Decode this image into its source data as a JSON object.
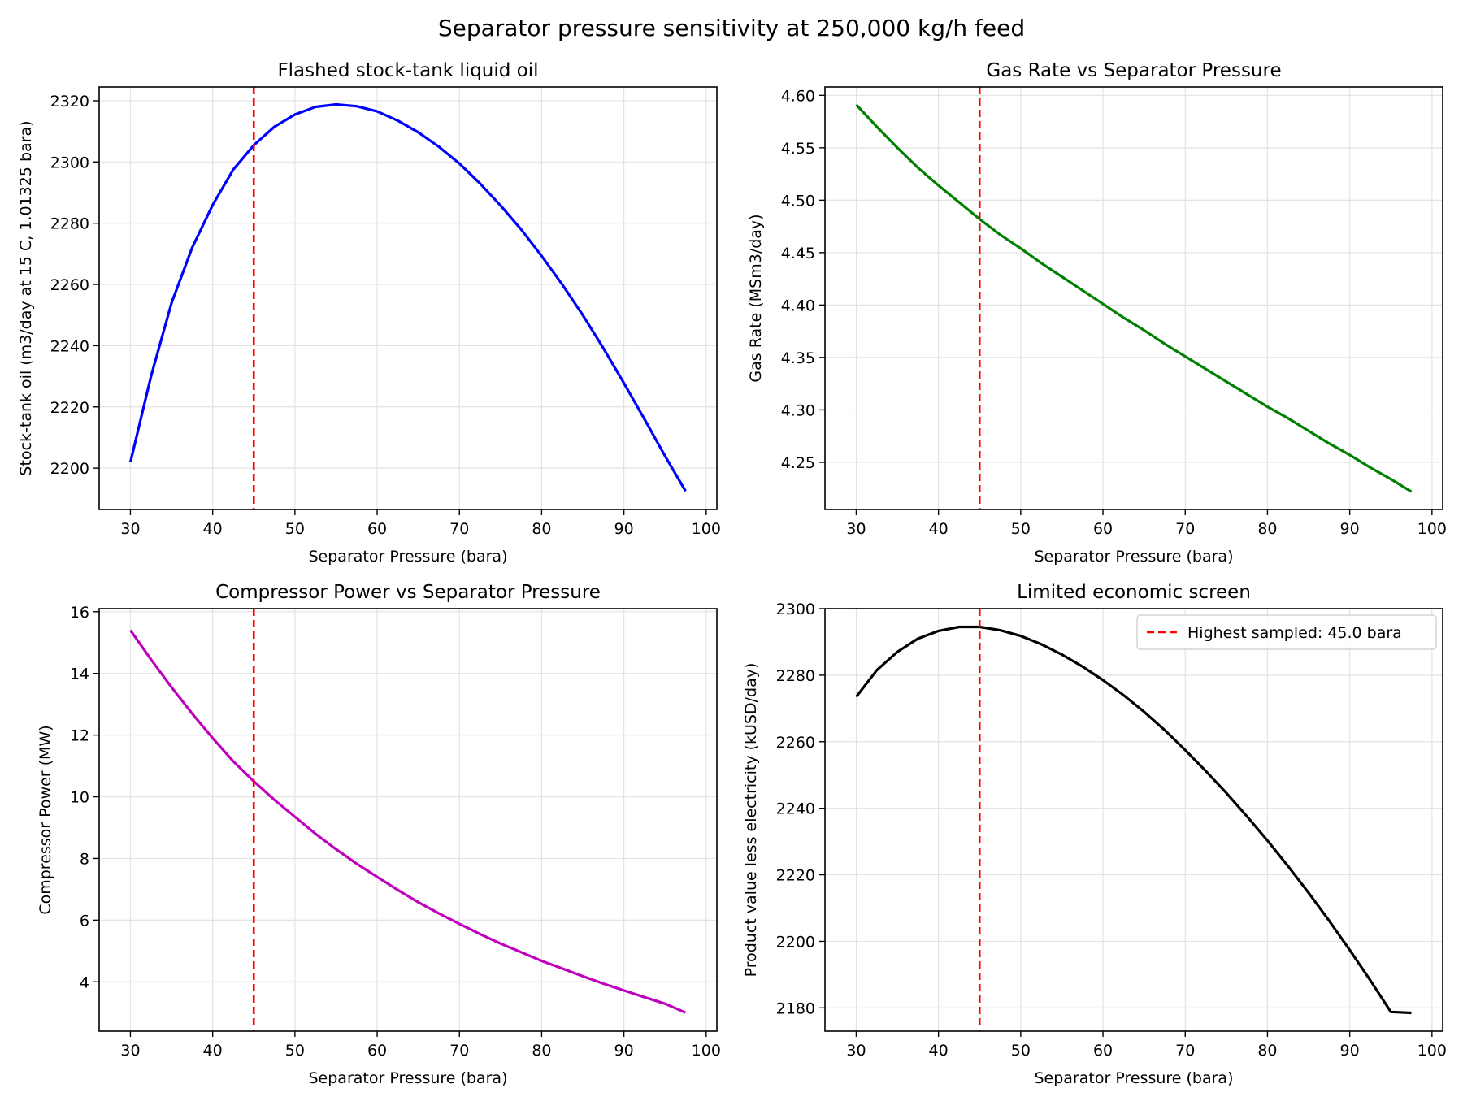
{
  "figure": {
    "title": "Separator pressure sensitivity at 250,000 kg/h feed"
  },
  "chart_data": [
    {
      "type": "line",
      "title": "Flashed stock-tank liquid oil",
      "xlabel": "Separator Pressure (bara)",
      "ylabel": "Stock-tank oil (m3/day at 15 C, 1.01325 bara)",
      "xlim": [
        26.2,
        101.3
      ],
      "ylim": [
        2186.5,
        2324.5
      ],
      "xticks": [
        30,
        40,
        50,
        60,
        70,
        80,
        90,
        100
      ],
      "yticks": [
        2200,
        2220,
        2240,
        2260,
        2280,
        2300,
        2320
      ],
      "grid": true,
      "color": "#0000ff",
      "marker_line": {
        "x": 45.0,
        "color": "#ff0000"
      },
      "series": [
        {
          "x": [
            30,
            32.5,
            35,
            37.5,
            40,
            42.5,
            45,
            47.5,
            50,
            52.5,
            55,
            57.5,
            60,
            62.5,
            65,
            67.5,
            70,
            72.5,
            75,
            77.5,
            80,
            82.5,
            85,
            87.5,
            90,
            92.5,
            95,
            97.5
          ],
          "values": [
            2202,
            2230,
            2254,
            2272,
            2286,
            2297.5,
            2305.5,
            2311.5,
            2315.5,
            2318,
            2318.8,
            2318.2,
            2316.5,
            2313.5,
            2309.7,
            2305,
            2299.5,
            2293,
            2285.8,
            2278,
            2269.3,
            2260,
            2250,
            2239.2,
            2227.8,
            2216,
            2204,
            2192.5
          ]
        }
      ]
    },
    {
      "type": "line",
      "title": "Gas Rate vs Separator Pressure",
      "xlabel": "Separator Pressure (bara)",
      "ylabel": "Gas Rate (MSm3/day)",
      "xlim": [
        26.2,
        101.3
      ],
      "ylim": [
        4.205,
        4.608
      ],
      "xticks": [
        30,
        40,
        50,
        60,
        70,
        80,
        90,
        100
      ],
      "yticks": [
        4.25,
        4.3,
        4.35,
        4.4,
        4.45,
        4.5,
        4.55,
        4.6
      ],
      "ytick_labels": [
        "4.25",
        "4.30",
        "4.35",
        "4.40",
        "4.45",
        "4.50",
        "4.55",
        "4.60"
      ],
      "grid": true,
      "color": "#008000",
      "marker_line": {
        "x": 45.0,
        "color": "#ff0000"
      },
      "series": [
        {
          "x": [
            30,
            32.5,
            35,
            37.5,
            40,
            42.5,
            45,
            47.5,
            50,
            52.5,
            55,
            57.5,
            60,
            62.5,
            65,
            67.5,
            70,
            72.5,
            75,
            77.5,
            80,
            82.5,
            85,
            87.5,
            90,
            92.5,
            95,
            97.5
          ],
          "values": [
            4.591,
            4.57,
            4.55,
            4.531,
            4.514,
            4.498,
            4.482,
            4.467,
            4.454,
            4.44,
            4.427,
            4.414,
            4.401,
            4.388,
            4.376,
            4.363,
            4.351,
            4.339,
            4.327,
            4.315,
            4.303,
            4.292,
            4.28,
            4.268,
            4.257,
            4.245,
            4.234,
            4.222
          ]
        }
      ]
    },
    {
      "type": "line",
      "title": "Compressor Power vs Separator Pressure",
      "xlabel": "Separator Pressure (bara)",
      "ylabel": "Compressor Power (MW)",
      "xlim": [
        26.2,
        101.3
      ],
      "ylim": [
        2.4,
        16.1
      ],
      "xticks": [
        30,
        40,
        50,
        60,
        70,
        80,
        90,
        100
      ],
      "yticks": [
        4,
        6,
        8,
        10,
        12,
        14,
        16
      ],
      "grid": true,
      "color": "#bf00bf",
      "marker_line": {
        "x": 45.0,
        "color": "#ff0000"
      },
      "series": [
        {
          "x": [
            30,
            32.5,
            35,
            37.5,
            40,
            42.5,
            45,
            47.5,
            50,
            52.5,
            55,
            57.5,
            60,
            62.5,
            65,
            67.5,
            70,
            72.5,
            75,
            77.5,
            80,
            82.5,
            85,
            87.5,
            90,
            92.5,
            95,
            97.5
          ],
          "values": [
            15.4,
            14.45,
            13.55,
            12.7,
            11.9,
            11.15,
            10.5,
            9.9,
            9.35,
            8.8,
            8.3,
            7.83,
            7.4,
            6.98,
            6.58,
            6.22,
            5.88,
            5.55,
            5.24,
            4.96,
            4.68,
            4.43,
            4.18,
            3.94,
            3.72,
            3.5,
            3.29,
            3.0
          ]
        }
      ]
    },
    {
      "type": "line",
      "title": "Limited economic screen",
      "xlabel": "Separator Pressure (bara)",
      "ylabel": "Product value less electricity (kUSD/day)",
      "xlim": [
        26.2,
        101.3
      ],
      "ylim": [
        2173.0,
        2300.0
      ],
      "xticks": [
        30,
        40,
        50,
        60,
        70,
        80,
        90,
        100
      ],
      "yticks": [
        2180,
        2200,
        2220,
        2240,
        2260,
        2280,
        2300
      ],
      "grid": true,
      "color": "#000000",
      "legend": {
        "placement": "top-right",
        "label": "Highest sampled: 45.0 bara"
      },
      "marker_line": {
        "x": 45.0,
        "color": "#ff0000"
      },
      "series": [
        {
          "x": [
            30,
            32.5,
            35,
            37.5,
            40,
            42.5,
            45,
            47.5,
            50,
            52.5,
            55,
            57.5,
            60,
            62.5,
            65,
            67.5,
            70,
            72.5,
            75,
            77.5,
            80,
            82.5,
            85,
            87.5,
            90,
            92.5,
            95,
            97.5
          ],
          "values": [
            2273.5,
            2281.5,
            2287,
            2291,
            2293.3,
            2294.5,
            2294.5,
            2293.5,
            2291.8,
            2289.3,
            2286.2,
            2282.6,
            2278.5,
            2274,
            2269,
            2263.5,
            2257.5,
            2251.2,
            2244.6,
            2237.6,
            2230.3,
            2222.6,
            2214.6,
            2206.2,
            2197.4,
            2188.3,
            2178.8,
            2178.5
          ]
        }
      ]
    }
  ]
}
